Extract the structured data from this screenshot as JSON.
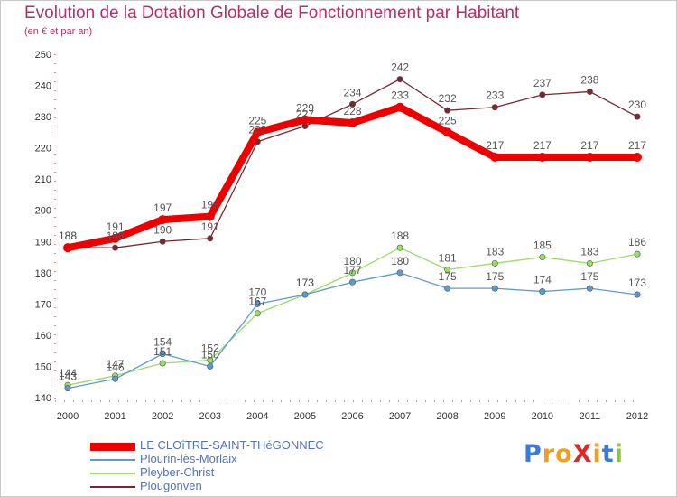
{
  "header": {
    "title": "Evolution de la Dotation Globale de Fonctionnement par Habitant",
    "subtitle": "(en € et par an)"
  },
  "logo": {
    "text": "ProXiti",
    "letters": [
      {
        "ch": "P",
        "color": "#3a7bd5"
      },
      {
        "ch": "r",
        "color": "#f0a01e"
      },
      {
        "ch": "o",
        "color": "#f0a01e"
      },
      {
        "ch": "X",
        "color": "#d92b2b"
      },
      {
        "ch": "i",
        "color": "#f0a01e"
      },
      {
        "ch": "t",
        "color": "#3a7bd5"
      },
      {
        "ch": "i",
        "color": "#8cc63f"
      }
    ]
  },
  "chart_data": {
    "type": "line",
    "title": "Evolution de la Dotation Globale de Fonctionnement par Habitant",
    "subtitle": "(en € et par an)",
    "xlabel": "",
    "ylabel": "",
    "x": [
      "2000",
      "2001",
      "2002",
      "2003",
      "2004",
      "2005",
      "2006",
      "2007",
      "2008",
      "2009",
      "2010",
      "2011",
      "2012"
    ],
    "ylim": [
      140,
      250
    ],
    "yticks": [
      140,
      150,
      160,
      170,
      180,
      190,
      200,
      210,
      220,
      230,
      240,
      250
    ],
    "grid": false,
    "legend_position": "bottom-left",
    "series": [
      {
        "name": "LE CLOîTRE-SAINT-THéGONNEC",
        "color": "#ee0000",
        "values": [
          188,
          191,
          197,
          198,
          225,
          229,
          228,
          233,
          225,
          217,
          217,
          217,
          217
        ]
      },
      {
        "name": "Plourin-lès-Morlaix",
        "color": "#5b9bd5",
        "values": [
          143,
          146,
          154,
          150,
          170,
          173,
          177,
          180,
          175,
          175,
          174,
          175,
          173
        ]
      },
      {
        "name": "Pleyber-Christ",
        "color": "#99dd66",
        "values": [
          144,
          147,
          151,
          152,
          167,
          173,
          180,
          188,
          181,
          183,
          185,
          183,
          186
        ]
      },
      {
        "name": "Plougonven",
        "color": "#7a2630",
        "values": [
          188,
          188,
          190,
          191,
          222,
          227,
          234,
          242,
          232,
          233,
          237,
          238,
          230
        ]
      }
    ]
  }
}
